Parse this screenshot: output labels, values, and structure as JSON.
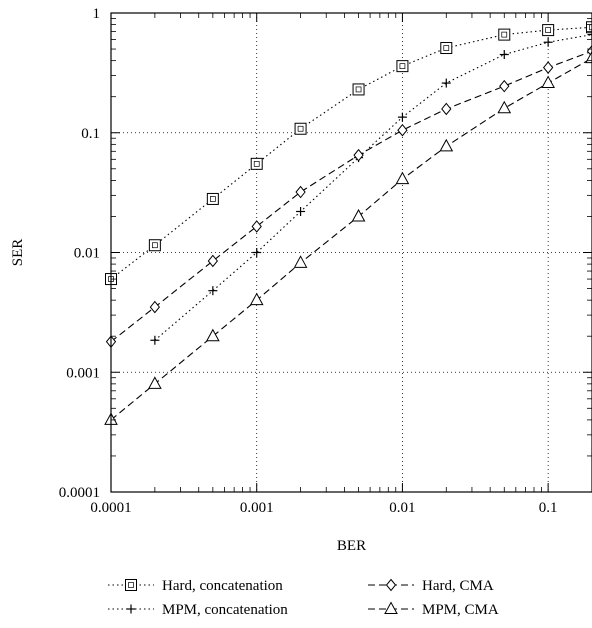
{
  "chart_data": {
    "type": "line",
    "xlabel": "BER",
    "ylabel": "SER",
    "x_scale": "log",
    "y_scale": "log",
    "xlim": [
      0.0001,
      0.2
    ],
    "ylim": [
      0.0001,
      1
    ],
    "grid": true,
    "legend_position": "bottom",
    "x_ticks": [
      {
        "value": 0.0001,
        "label": "0.0001"
      },
      {
        "value": 0.001,
        "label": "0.001"
      },
      {
        "value": 0.01,
        "label": "0.01"
      },
      {
        "value": 0.1,
        "label": "0.1"
      }
    ],
    "y_ticks": [
      {
        "value": 0.0001,
        "label": "0.0001"
      },
      {
        "value": 0.001,
        "label": "0.001"
      },
      {
        "value": 0.01,
        "label": "0.01"
      },
      {
        "value": 0.1,
        "label": "0.1"
      },
      {
        "value": 1,
        "label": "1"
      }
    ],
    "series": [
      {
        "name": "Hard, concatenation",
        "marker": "square",
        "line_style": "dotted",
        "color": "#000000",
        "points": [
          {
            "x": 0.0001,
            "y": 0.006
          },
          {
            "x": 0.0002,
            "y": 0.0115
          },
          {
            "x": 0.0005,
            "y": 0.028
          },
          {
            "x": 0.001,
            "y": 0.055
          },
          {
            "x": 0.002,
            "y": 0.108
          },
          {
            "x": 0.005,
            "y": 0.23
          },
          {
            "x": 0.01,
            "y": 0.36
          },
          {
            "x": 0.02,
            "y": 0.51
          },
          {
            "x": 0.05,
            "y": 0.66
          },
          {
            "x": 0.1,
            "y": 0.72
          },
          {
            "x": 0.2,
            "y": 0.76
          }
        ]
      },
      {
        "name": "MPM, concatenation",
        "marker": "plus",
        "line_style": "dotted",
        "color": "#000000",
        "points": [
          {
            "x": 0.0002,
            "y": 0.00185
          },
          {
            "x": 0.0005,
            "y": 0.0048
          },
          {
            "x": 0.001,
            "y": 0.01
          },
          {
            "x": 0.002,
            "y": 0.022
          },
          {
            "x": 0.005,
            "y": 0.062
          },
          {
            "x": 0.01,
            "y": 0.135
          },
          {
            "x": 0.02,
            "y": 0.26
          },
          {
            "x": 0.05,
            "y": 0.45
          },
          {
            "x": 0.1,
            "y": 0.57
          },
          {
            "x": 0.2,
            "y": 0.66
          }
        ]
      },
      {
        "name": "Hard, CMA",
        "marker": "diamond",
        "line_style": "dashed",
        "color": "#000000",
        "points": [
          {
            "x": 0.0001,
            "y": 0.0018
          },
          {
            "x": 0.0002,
            "y": 0.0035
          },
          {
            "x": 0.0005,
            "y": 0.0085
          },
          {
            "x": 0.001,
            "y": 0.0165
          },
          {
            "x": 0.002,
            "y": 0.032
          },
          {
            "x": 0.005,
            "y": 0.065
          },
          {
            "x": 0.01,
            "y": 0.105
          },
          {
            "x": 0.02,
            "y": 0.158
          },
          {
            "x": 0.05,
            "y": 0.245
          },
          {
            "x": 0.1,
            "y": 0.35
          },
          {
            "x": 0.2,
            "y": 0.48
          }
        ]
      },
      {
        "name": "MPM, CMA",
        "marker": "triangle",
        "line_style": "dashed",
        "color": "#000000",
        "points": [
          {
            "x": 0.0001,
            "y": 0.0004
          },
          {
            "x": 0.0002,
            "y": 0.0008
          },
          {
            "x": 0.0005,
            "y": 0.002
          },
          {
            "x": 0.001,
            "y": 0.004
          },
          {
            "x": 0.002,
            "y": 0.0082
          },
          {
            "x": 0.005,
            "y": 0.02
          },
          {
            "x": 0.01,
            "y": 0.041
          },
          {
            "x": 0.02,
            "y": 0.077
          },
          {
            "x": 0.05,
            "y": 0.16
          },
          {
            "x": 0.1,
            "y": 0.26
          },
          {
            "x": 0.2,
            "y": 0.42
          }
        ]
      }
    ]
  }
}
